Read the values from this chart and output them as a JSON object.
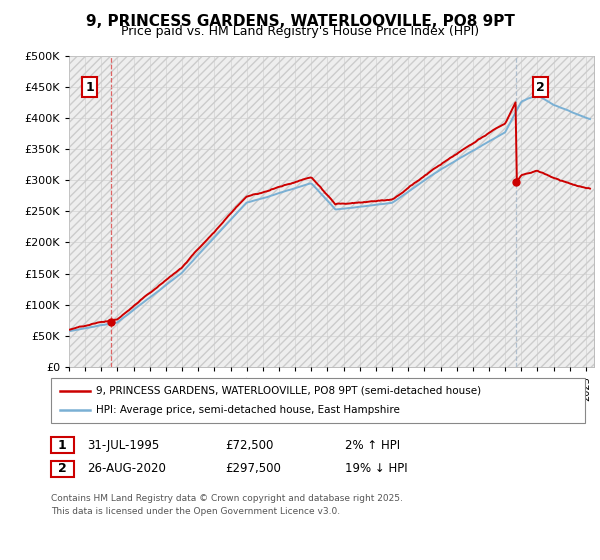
{
  "title": "9, PRINCESS GARDENS, WATERLOOVILLE, PO8 9PT",
  "subtitle": "Price paid vs. HM Land Registry's House Price Index (HPI)",
  "legend_line1": "9, PRINCESS GARDENS, WATERLOOVILLE, PO8 9PT (semi-detached house)",
  "legend_line2": "HPI: Average price, semi-detached house, East Hampshire",
  "ann1_label": "1",
  "ann1_date": "31-JUL-1995",
  "ann1_price": "£72,500",
  "ann1_hpi": "2% ↑ HPI",
  "ann1_year": 1995.58,
  "ann1_value": 72500,
  "ann2_label": "2",
  "ann2_date": "26-AUG-2020",
  "ann2_price": "£297,500",
  "ann2_hpi": "19% ↓ HPI",
  "ann2_year": 2020.66,
  "ann2_value": 297500,
  "footer_line1": "Contains HM Land Registry data © Crown copyright and database right 2025.",
  "footer_line2": "This data is licensed under the Open Government Licence v3.0.",
  "ylim": [
    0,
    500000
  ],
  "yticks": [
    0,
    50000,
    100000,
    150000,
    200000,
    250000,
    300000,
    350000,
    400000,
    450000,
    500000
  ],
  "xlim_min": 1993.0,
  "xlim_max": 2025.5,
  "line_color_red": "#cc0000",
  "line_color_blue": "#7ab0d4",
  "vline1_color": "#dd5555",
  "vline2_color": "#aabbcc",
  "grid_color": "#cccccc",
  "hatch_color": "#e0e0e0",
  "ann_box_color": "#cc0000"
}
